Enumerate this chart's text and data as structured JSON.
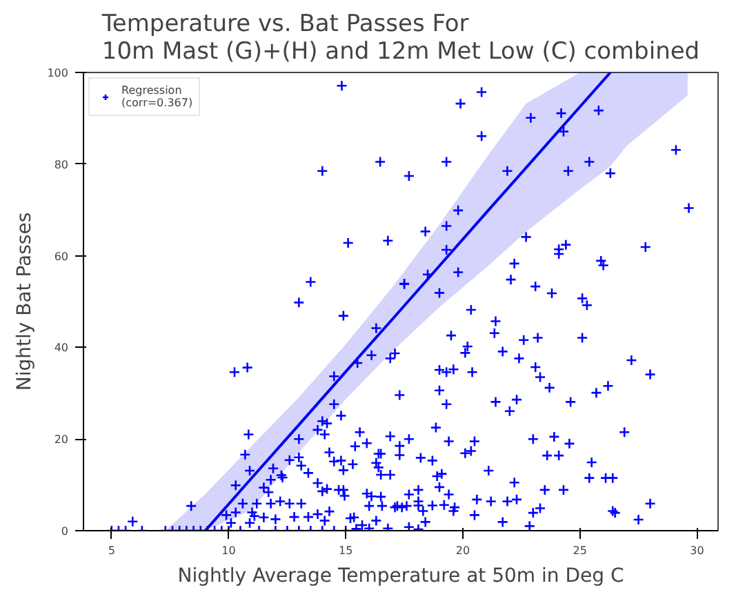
{
  "chart_data": {
    "type": "scatter",
    "title": "Temperature vs. Bat Passes For\n10m Mast (G)+(H) and 12m Met Low (C) combined",
    "xlabel": "Nightly Average Temperature at 50m in Deg C",
    "ylabel": "Nightly Bat Passes",
    "xlim": [
      3.8,
      30.9
    ],
    "ylim": [
      0,
      100
    ],
    "xticks": [
      5,
      10,
      15,
      20,
      25,
      30
    ],
    "yticks": [
      0,
      20,
      40,
      60,
      80,
      100
    ],
    "grid": false,
    "legend": "top left",
    "series": [
      {
        "name": "Regression\n(corr=0.367)",
        "color": "#0000ff",
        "marker": "cross",
        "x": [
          14.83,
          16.47,
          14.0,
          17.7,
          15.1,
          16.8,
          13.5,
          13.0,
          17.5,
          19.9,
          20.8,
          20.8,
          22.9,
          24.2,
          24.3,
          25.8,
          29.1,
          29.65,
          19.3,
          21.9,
          24.5,
          25.4,
          26.3,
          19.8,
          18.4,
          19.3,
          19.3,
          22.7,
          24.1,
          24.4,
          24.1,
          27.8,
          25.9,
          26.0,
          22.2,
          19.8,
          18.5,
          17.5,
          19.0,
          22.05,
          23.1,
          23.8,
          25.1,
          25.3,
          20.35,
          21.4,
          21.35,
          19.5,
          22.6,
          23.2,
          25.1,
          20.2,
          20.1,
          21.7,
          22.4,
          17.1,
          19.0,
          19.6,
          19.3,
          20.4,
          23.1,
          23.3,
          27.2,
          28.0,
          23.7,
          26.2,
          25.7,
          19.0,
          17.3,
          21.4,
          22.3,
          19.3,
          24.6,
          22.0,
          18.85,
          17.7,
          19.4,
          20.5,
          23.0,
          23.9,
          24.55,
          26.9,
          17.3,
          17.3,
          18.2,
          18.7,
          20.1,
          20.35,
          23.6,
          24.1,
          25.5,
          18.9,
          19.1,
          21.1,
          25.4,
          26.1,
          26.4,
          19.0,
          22.2,
          23.5,
          24.3,
          17.7,
          18.1,
          19.4,
          18.1,
          18.1,
          18.7,
          19.2,
          19.65,
          20.6,
          21.2,
          21.9,
          22.3,
          28.0,
          17.1,
          17.4,
          18.3,
          19.6,
          20.5,
          23.3,
          23.0,
          26.4,
          26.5,
          27.5,
          18.4,
          21.7,
          17.7,
          18.1,
          22.85,
          14.9,
          16.3,
          10.25,
          10.8,
          15.5,
          16.1,
          16.9,
          14.5,
          14.5,
          14.8,
          14.0,
          14.2,
          13.8,
          14.1,
          15.6,
          15.9,
          15.4,
          16.9,
          10.85,
          10.7,
          10.9,
          10.3,
          8.4,
          5.9,
          13.0,
          14.3,
          14.5,
          14.8,
          14.9,
          15.3,
          16.4,
          16.5,
          16.3,
          16.4,
          16.5,
          16.9,
          12.25,
          12.6,
          13.0,
          13.1,
          13.4,
          11.9,
          12.3,
          11.8,
          11.5,
          11.7,
          13.8,
          14.0,
          14.2,
          14.7,
          14.9,
          14.95,
          15.9,
          16.1,
          16.5,
          17.2,
          17.6,
          16.0,
          16.55,
          12.2,
          11.8,
          11.2,
          10.6,
          9.9,
          10.3,
          11.0,
          11.1,
          11.5,
          12.0,
          12.6,
          13.1,
          12.8,
          13.4,
          13.8,
          14.3,
          14.1,
          15.2,
          15.35,
          15.7,
          16.3,
          16.8,
          16.0,
          15.45,
          10.9,
          10.1,
          5.0,
          5.3,
          5.6,
          6.3,
          7.3,
          7.6,
          7.9,
          8.2,
          8.5,
          8.8,
          9.1,
          9.4,
          9.7,
          10.0,
          10.5,
          11.3,
          12.0,
          12.5,
          13.0,
          13.5,
          14.0,
          14.5,
          15.0
        ],
        "values": [
          97.1,
          80.5,
          78.5,
          77.4,
          62.8,
          63.3,
          54.3,
          49.8,
          53.8,
          93.2,
          95.7,
          86.1,
          90.1,
          91.1,
          87.1,
          91.7,
          83.1,
          70.4,
          80.5,
          78.5,
          78.5,
          80.5,
          78.0,
          69.9,
          65.3,
          66.5,
          61.3,
          64.1,
          61.4,
          62.4,
          60.4,
          61.9,
          58.9,
          57.9,
          58.3,
          56.4,
          55.9,
          53.9,
          51.9,
          54.8,
          53.3,
          51.8,
          50.7,
          49.2,
          48.2,
          45.7,
          43.1,
          42.6,
          41.6,
          42.1,
          42.1,
          40.2,
          38.8,
          39.1,
          37.6,
          38.7,
          35.1,
          35.2,
          34.6,
          34.6,
          35.7,
          33.5,
          37.2,
          34.1,
          31.2,
          31.6,
          30.1,
          30.6,
          29.6,
          28.1,
          28.6,
          27.6,
          28.1,
          26.1,
          22.5,
          20.0,
          19.5,
          19.5,
          20.0,
          20.5,
          19.0,
          21.5,
          18.5,
          16.5,
          15.9,
          15.3,
          16.9,
          17.4,
          16.4,
          16.4,
          14.9,
          11.9,
          12.4,
          13.1,
          11.5,
          11.5,
          11.5,
          9.5,
          10.5,
          8.9,
          8.9,
          7.9,
          8.9,
          7.9,
          6.4,
          5.5,
          5.5,
          5.6,
          5.1,
          6.8,
          6.4,
          6.4,
          6.8,
          5.9,
          5.1,
          5.1,
          4.3,
          4.3,
          3.4,
          4.9,
          3.9,
          4.3,
          3.9,
          2.4,
          1.9,
          1.9,
          0.8,
          0.3,
          1.0,
          46.9,
          44.2,
          34.6,
          35.6,
          36.6,
          38.3,
          37.6,
          33.7,
          27.6,
          25.1,
          23.9,
          23.4,
          22.0,
          21.0,
          21.5,
          19.1,
          18.4,
          20.6,
          21.0,
          16.6,
          13.1,
          9.9,
          5.4,
          2.0,
          20.0,
          17.1,
          15.1,
          15.3,
          13.2,
          14.5,
          16.8,
          16.8,
          14.8,
          13.8,
          12.2,
          12.2,
          12.1,
          15.4,
          16.0,
          14.2,
          12.6,
          13.6,
          11.6,
          11.1,
          9.4,
          8.4,
          10.4,
          8.6,
          9.1,
          8.9,
          8.9,
          7.6,
          8.1,
          7.5,
          7.4,
          5.4,
          5.4,
          5.4,
          5.4,
          6.4,
          5.9,
          5.9,
          5.9,
          3.4,
          4.0,
          4.0,
          3.2,
          2.9,
          2.5,
          5.9,
          5.9,
          3.0,
          3.0,
          3.6,
          4.2,
          2.2,
          2.7,
          2.9,
          1.2,
          2.2,
          0.5,
          0.5,
          0.4,
          1.7,
          1.7,
          0,
          0,
          0,
          0,
          0,
          0,
          0,
          0,
          0,
          0,
          0,
          0,
          0,
          0,
          0,
          0,
          0,
          0,
          0,
          0,
          0,
          0,
          0
        ]
      },
      {
        "type": "line",
        "color": "#0000ee",
        "marker": "none",
        "x": [
          7.3,
          9,
          11,
          13,
          15,
          17,
          19,
          21,
          22.7,
          25,
          26.3,
          27,
          29.6
        ],
        "values": [
          null,
          0,
          11.6,
          23.1,
          34.7,
          46.2,
          57.8,
          69.4,
          79.2,
          92.5,
          100,
          null,
          null
        ],
        "lower": [
          0,
          0,
          4.6,
          17.1,
          28.7,
          39.2,
          48.8,
          57.4,
          65.2,
          74.5,
          79.5,
          84,
          95
        ],
        "upper": [
          0,
          8,
          18.6,
          29.1,
          40.7,
          53.2,
          66.8,
          81.4,
          93.2,
          100,
          100,
          100,
          100
        ]
      }
    ]
  }
}
